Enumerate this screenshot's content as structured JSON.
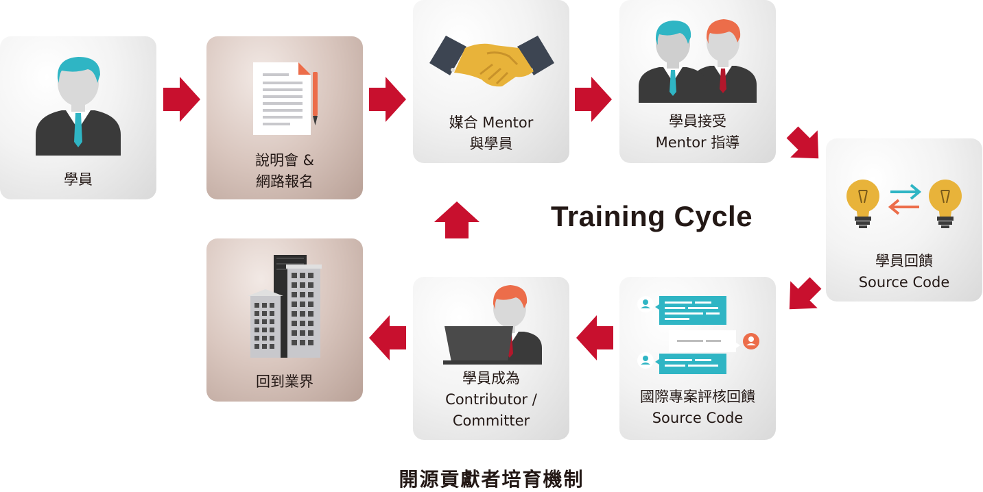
{
  "title": "Training Cycle",
  "caption": "開源貢獻者培育機制",
  "steps": {
    "student": {
      "line1": "學員"
    },
    "signup": {
      "line1": "說明會 &",
      "line2": "網路報名"
    },
    "matching": {
      "line1": "媒合 Mentor",
      "line2": "與學員"
    },
    "mentoring": {
      "line1": "學員接受",
      "line2": "Mentor 指導"
    },
    "feedback": {
      "line1": "學員回饋",
      "line2": "Source Code"
    },
    "review": {
      "line1": "國際專案評核回饋",
      "line2": "Source Code"
    },
    "contributor": {
      "line1": "學員成為",
      "line2": "Contributor /",
      "line3": "Committer"
    },
    "industry": {
      "line1": "回到業界"
    }
  },
  "colors": {
    "arrow": "#c8102e",
    "teal": "#2fb5c4",
    "orange": "#ec6d4a",
    "suit": "#3a3a3a"
  }
}
